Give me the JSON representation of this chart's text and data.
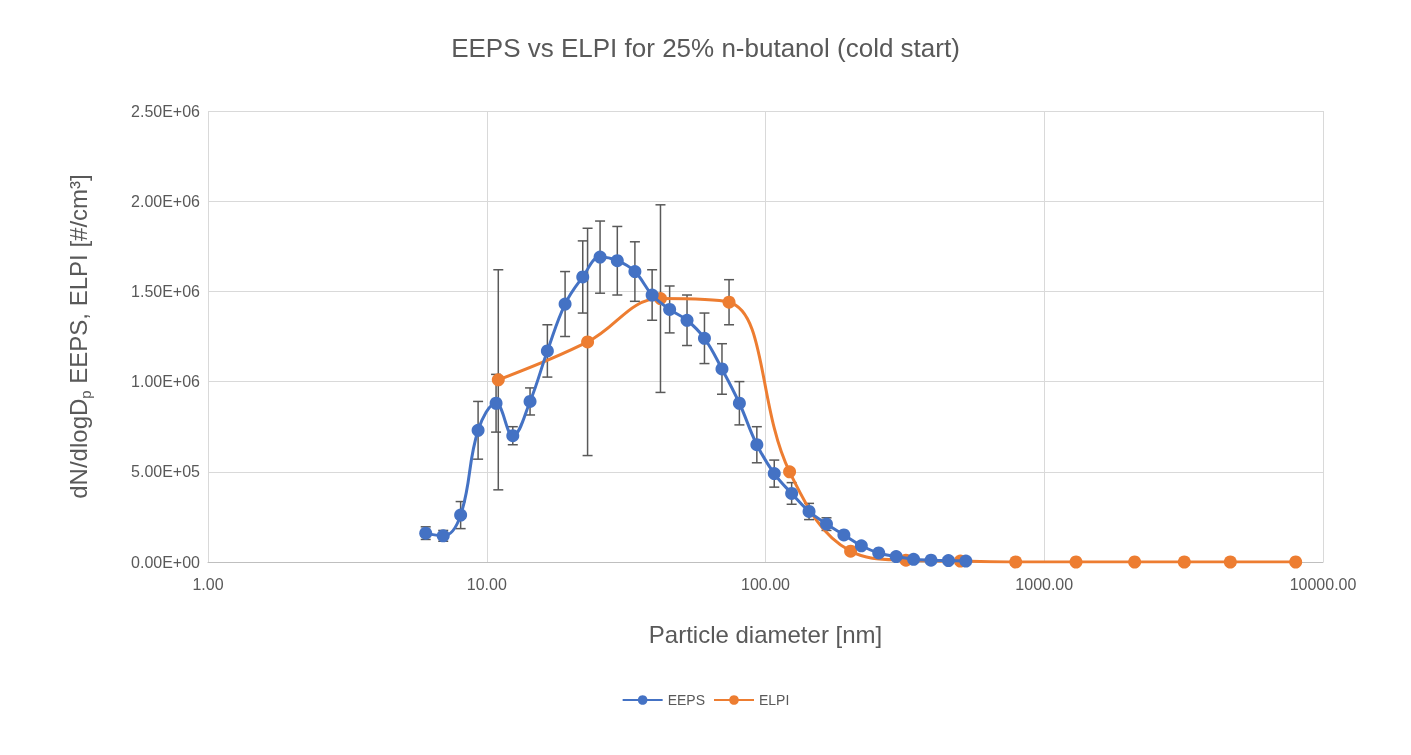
{
  "chart_data": {
    "type": "line",
    "title": "EEPS vs ELPI for 25% n-butanol (cold start)",
    "xlabel": "Particle diameter [nm]",
    "ylabel": "dN/dlogD$_{p}$ EEPS, ELPI [#/cm³]",
    "log": "x",
    "grid": true,
    "legend": "bottom",
    "marker": "circle",
    "line_style": "solid",
    "xlim": [
      1,
      10000
    ],
    "xticks": [
      {
        "value": 1,
        "label": "1.00"
      },
      {
        "value": 10,
        "label": "10.00"
      },
      {
        "value": 100,
        "label": "100.00"
      },
      {
        "value": 1000,
        "label": "1000.00"
      },
      {
        "value": 10000,
        "label": "10000.00"
      }
    ],
    "ylim": [
      0,
      2500000
    ],
    "yticks": [
      {
        "value": 0,
        "label": "0.00E+00"
      },
      {
        "value": 500000,
        "label": "5.00E+05"
      },
      {
        "value": 1000000,
        "label": "1.00E+06"
      },
      {
        "value": 1500000,
        "label": "1.50E+06"
      },
      {
        "value": 2000000,
        "label": "2.00E+06"
      },
      {
        "value": 2500000,
        "label": "2.50E+06"
      }
    ],
    "series": [
      {
        "name": "EEPS",
        "color": "#4472c4",
        "x": [
          6.04,
          6.98,
          8.06,
          9.31,
          10.8,
          12.4,
          14.3,
          16.5,
          19.1,
          22.1,
          25.5,
          29.4,
          34.0,
          39.2,
          45.3,
          52.3,
          60.4,
          69.8,
          80.6,
          93.1,
          107.5,
          124.1,
          143.3,
          165.5,
          191.1,
          220.7,
          254.8,
          294.3,
          339.8,
          392.4,
          453.2,
          523.3
        ],
        "values": [
          160000,
          145000,
          260000,
          730000,
          880000,
          700000,
          890000,
          1170000,
          1430000,
          1580000,
          1690000,
          1670000,
          1610000,
          1480000,
          1400000,
          1340000,
          1240000,
          1070000,
          880000,
          650000,
          490000,
          380000,
          280000,
          210000,
          150000,
          90000,
          50000,
          30000,
          15000,
          10000,
          8000,
          5000
        ],
        "errors": [
          35000,
          30000,
          75000,
          160000,
          160000,
          50000,
          75000,
          145000,
          180000,
          200000,
          200000,
          190000,
          165000,
          140000,
          130000,
          140000,
          140000,
          140000,
          120000,
          100000,
          75000,
          60000,
          45000,
          35000,
          null,
          null,
          null,
          null,
          null,
          null,
          null,
          null
        ]
      },
      {
        "name": "ELPI",
        "color": "#ed7d31",
        "x": [
          11,
          23,
          42,
          74,
          122,
          202,
          319,
          500,
          790,
          1300,
          2110,
          3180,
          4650,
          7980
        ],
        "values": [
          1010000,
          1220000,
          1460000,
          1440000,
          500000,
          60000,
          10000,
          5000,
          0,
          0,
          0,
          0,
          0,
          0
        ],
        "errors": [
          610000,
          630000,
          520000,
          125000,
          null,
          null,
          null,
          null,
          null,
          null,
          null,
          null,
          null,
          null
        ]
      }
    ]
  }
}
